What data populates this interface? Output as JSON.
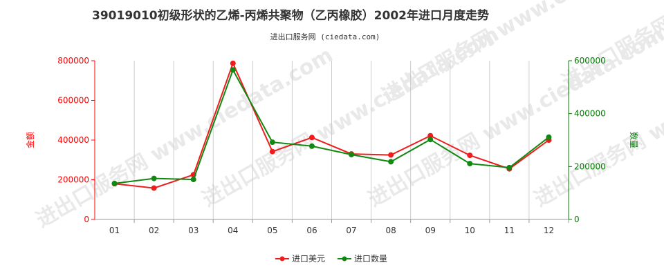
{
  "chart_data": {
    "type": "line",
    "title": "39019010初级形状的乙烯-丙烯共聚物（乙丙橡胶）2002年进口月度走势",
    "subtitle": "进出口服务网 (ciedata.com)",
    "watermark": "进出口服务网 www.ciedata.com",
    "categories": [
      "01",
      "02",
      "03",
      "04",
      "05",
      "06",
      "07",
      "08",
      "09",
      "10",
      "11",
      "12"
    ],
    "y_left": {
      "label": "金额",
      "ticks": [
        "0",
        "200000",
        "400000",
        "600000",
        "800000"
      ],
      "range": [
        0,
        800000
      ],
      "color": "#ff0000"
    },
    "y_right": {
      "label": "数量",
      "ticks": [
        "0",
        "200000",
        "400000",
        "600000"
      ],
      "range": [
        0,
        600000
      ],
      "color": "#008000"
    },
    "series": [
      {
        "name": "进口美元",
        "axis": "left",
        "color": "#ee1c1c",
        "values": [
          180000,
          158000,
          225000,
          787000,
          342000,
          413000,
          330000,
          325000,
          422000,
          323000,
          255000,
          400000
        ]
      },
      {
        "name": "进口数量",
        "axis": "right",
        "color": "#118811",
        "values": [
          136000,
          155000,
          151000,
          565000,
          292000,
          277000,
          245000,
          218000,
          302000,
          211000,
          196000,
          311000
        ]
      }
    ],
    "grid": "vertical",
    "legend_position": "bottom"
  }
}
